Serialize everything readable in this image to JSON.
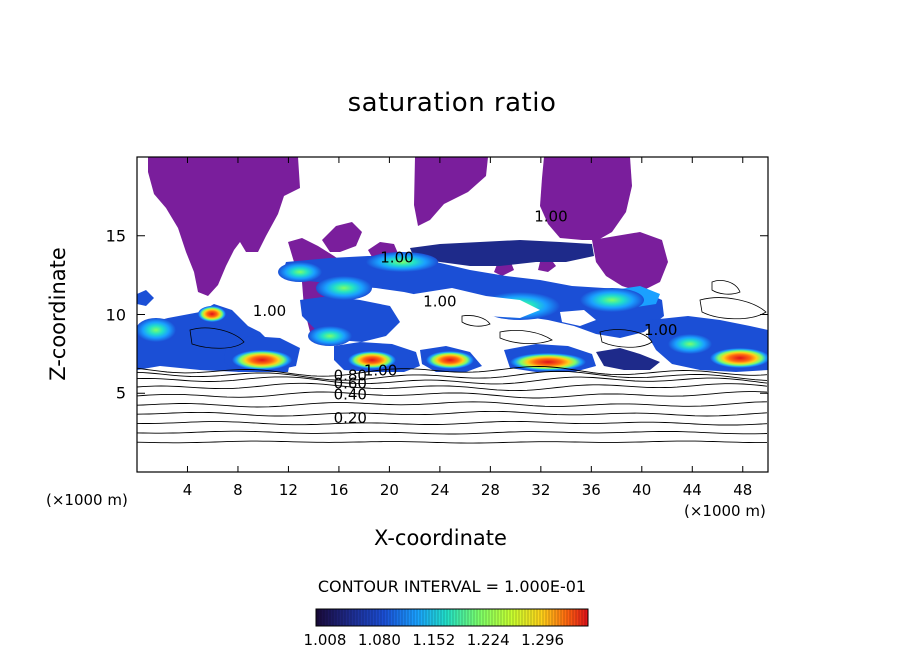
{
  "chart_data": {
    "type": "heatmap",
    "title": "saturation ratio",
    "xlabel": "X-coordinate",
    "ylabel": "Z-coordinate",
    "x_unit_left": "(×1000 m)",
    "x_unit_right": "(×1000 m)",
    "xlim": [
      0,
      50
    ],
    "ylim": [
      0,
      20
    ],
    "xticks": [
      4,
      8,
      12,
      16,
      20,
      24,
      28,
      32,
      36,
      40,
      44,
      48
    ],
    "xtick_labels": [
      "4",
      "8",
      "12",
      "16",
      "20",
      "24",
      "28",
      "32",
      "36",
      "40",
      "44",
      "48"
    ],
    "yticks": [
      5,
      10,
      15
    ],
    "ytick_labels": [
      "5",
      "10",
      "15"
    ],
    "contour_interval_text": "CONTOUR INTERVAL = 1.000E-01",
    "colorbar": {
      "min": 1.008,
      "max": 1.296,
      "tick_values": [
        1.008,
        1.08,
        1.152,
        1.224,
        1.296
      ],
      "tick_labels": [
        "1.008",
        "1.080",
        "1.152",
        "1.224",
        "1.296"
      ]
    },
    "contour_labels": [
      {
        "text": "1.00",
        "x": 20.6,
        "y": 13.6
      },
      {
        "text": "1.00",
        "x": 10.5,
        "y": 10.2
      },
      {
        "text": "1.00",
        "x": 24.0,
        "y": 10.8
      },
      {
        "text": "1.00",
        "x": 41.5,
        "y": 9.0
      },
      {
        "text": "1.00",
        "x": 32.8,
        "y": 16.2
      },
      {
        "text": "1.00",
        "x": 19.3,
        "y": 6.4
      },
      {
        "text": "0.80",
        "x": 16.9,
        "y": 6.1
      },
      {
        "text": "0.60",
        "x": 16.9,
        "y": 5.6
      },
      {
        "text": "0.40",
        "x": 16.9,
        "y": 4.9
      },
      {
        "text": "0.20",
        "x": 16.9,
        "y": 3.4
      }
    ],
    "contour_lines_y": [
      1.9,
      2.5,
      3.1,
      3.7,
      4.3,
      4.9,
      5.4,
      5.8,
      6.1,
      6.4
    ],
    "colors": {
      "min_region": "#7a1e9c",
      "scale": [
        "#1a0a3a",
        "#1e2a8a",
        "#1b4fd6",
        "#1aa0ff",
        "#22e0c8",
        "#7cff6a",
        "#c8ff30",
        "#ffd21a",
        "#ff6a10",
        "#e0101a"
      ]
    }
  }
}
